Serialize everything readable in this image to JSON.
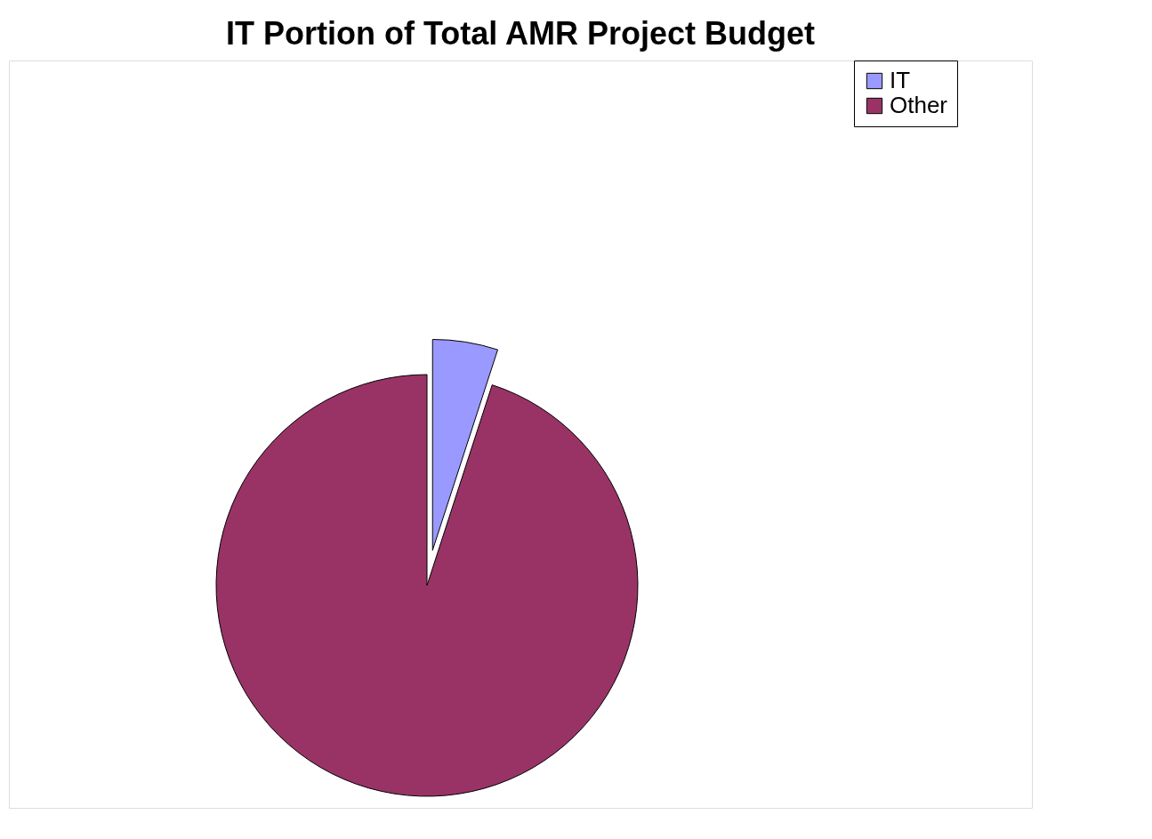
{
  "chart_data": {
    "type": "pie",
    "title": "IT Portion of Total AMR Project Budget",
    "categories": [
      "IT",
      "Other"
    ],
    "values": [
      5,
      95
    ],
    "colors": [
      "#9999ff",
      "#993366"
    ],
    "legend": "right"
  }
}
